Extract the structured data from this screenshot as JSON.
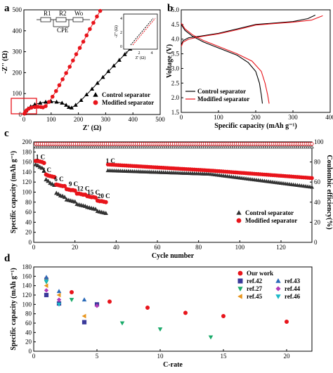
{
  "panels": {
    "a": "a",
    "b": "b",
    "c": "c",
    "d": "d"
  },
  "chart_data": [
    {
      "id": "a",
      "type": "scatter",
      "xlabel": "Z' (Ω)",
      "ylabel": "-Z'' (Ω)",
      "xlim": [
        0,
        500
      ],
      "ylim": [
        0,
        500
      ],
      "xticks": [
        0,
        100,
        200,
        300,
        400,
        500
      ],
      "yticks": [
        0,
        100,
        200,
        300,
        400,
        500
      ],
      "circuit_labels": [
        "R1",
        "R2",
        "Wo",
        "CPE"
      ],
      "inset": {
        "xlabel": "Z' (Ω)",
        "ylabel": "-Z'' (Ω)",
        "xticks": [
          0,
          2,
          4
        ],
        "yticks": [
          0,
          2,
          4
        ]
      },
      "series": [
        {
          "name": "Control separator",
          "marker": "triangle",
          "color": "#000000",
          "x": [
            2,
            8,
            15,
            25,
            40,
            60,
            80,
            100,
            120,
            140,
            155,
            165,
            175,
            190,
            210,
            230,
            250,
            270,
            290,
            310,
            330,
            350,
            370,
            390,
            410,
            430
          ],
          "y": [
            5,
            18,
            28,
            38,
            48,
            55,
            60,
            62,
            60,
            55,
            45,
            35,
            32,
            45,
            68,
            95,
            122,
            150,
            178,
            206,
            233,
            260,
            287,
            313,
            340,
            366
          ]
        },
        {
          "name": "Modified separator",
          "marker": "circle",
          "color": "#e8141b",
          "x": [
            2,
            5,
            10,
            18,
            28,
            40,
            52,
            62,
            70,
            80,
            92,
            105,
            118,
            130,
            142,
            155,
            168,
            180,
            192,
            205,
            218,
            230,
            242,
            255,
            268,
            280
          ],
          "y": [
            4,
            12,
            20,
            28,
            33,
            36,
            37,
            36,
            34,
            40,
            60,
            85,
            112,
            140,
            168,
            198,
            228,
            258,
            288,
            318,
            348,
            378,
            408,
            438,
            468,
            495
          ]
        }
      ]
    },
    {
      "id": "b",
      "type": "line",
      "xlabel": "Specific capacity (mAh g⁻¹)",
      "ylabel": "Voltage (V)",
      "xlim": [
        0,
        400
      ],
      "ylim": [
        1.5,
        5.0
      ],
      "xticks": [
        0,
        100,
        200,
        300,
        400
      ],
      "yticks": [
        1.5,
        2.0,
        2.5,
        3.0,
        3.5,
        4.0,
        4.5,
        5.0
      ],
      "series": [
        {
          "name": "Control separator",
          "color": "#000000",
          "charge": {
            "x": [
              0,
              5,
              20,
              50,
              100,
              150,
              200,
              250,
              300,
              340,
              360
            ],
            "y": [
              3.8,
              3.95,
              4.05,
              4.1,
              4.2,
              4.35,
              4.5,
              4.55,
              4.6,
              4.7,
              4.82
            ]
          },
          "discharge": {
            "x": [
              0,
              10,
              30,
              60,
              100,
              150,
              180,
              200,
              210,
              215,
              218
            ],
            "y": [
              4.5,
              4.3,
              4.1,
              3.9,
              3.7,
              3.45,
              3.2,
              2.9,
              2.5,
              2.1,
              1.8
            ]
          }
        },
        {
          "name": "Modified separator",
          "color": "#e8141b",
          "charge": {
            "x": [
              0,
              5,
              20,
              50,
              100,
              150,
              200,
              250,
              300,
              350,
              380
            ],
            "y": [
              3.75,
              3.9,
              4.0,
              4.08,
              4.18,
              4.32,
              4.48,
              4.53,
              4.58,
              4.65,
              4.8
            ]
          },
          "discharge": {
            "x": [
              0,
              10,
              30,
              60,
              100,
              150,
              190,
              215,
              225,
              232,
              236
            ],
            "y": [
              4.55,
              4.35,
              4.15,
              3.95,
              3.75,
              3.5,
              3.25,
              2.9,
              2.5,
              2.1,
              1.8
            ]
          }
        }
      ]
    },
    {
      "id": "c",
      "type": "scatter",
      "xlabel": "Cycle number",
      "ylabel": "Specific capacity (mAh g⁻¹)",
      "y2label": "Coulombic efficiency(%)",
      "xlim": [
        0,
        135
      ],
      "ylim": [
        0,
        200
      ],
      "y2lim": [
        0,
        100
      ],
      "xticks": [
        0,
        20,
        40,
        60,
        80,
        100,
        120
      ],
      "yticks": [
        0,
        20,
        40,
        60,
        80,
        100,
        120,
        140,
        160,
        180,
        200
      ],
      "y2ticks": [
        0,
        20,
        40,
        60,
        80,
        100
      ],
      "rate_labels": [
        {
          "text": "1 C",
          "x": 1,
          "y": 166
        },
        {
          "text": "3 C",
          "x": 4,
          "y": 140
        },
        {
          "text": "6 C",
          "x": 10,
          "y": 122
        },
        {
          "text": "9 C",
          "x": 17,
          "y": 112
        },
        {
          "text": "12 C",
          "x": 21,
          "y": 103
        },
        {
          "text": "15 C",
          "x": 26,
          "y": 95
        },
        {
          "text": "20 C",
          "x": 31,
          "y": 88
        },
        {
          "text": "1 C",
          "x": 35,
          "y": 158
        }
      ],
      "series": [
        {
          "name": "Control separator",
          "color": "#333333",
          "marker": "triangle",
          "capacity_rate": {
            "x": [
              1,
              2,
              3,
              4,
              5,
              6,
              7,
              8,
              9,
              10,
              11,
              12,
              13,
              14,
              15,
              16,
              17,
              18,
              19,
              20,
              21,
              22,
              23,
              24,
              25,
              26,
              27,
              28,
              29,
              30,
              31,
              32,
              33,
              34,
              35
            ],
            "y": [
              155,
              153,
              150,
              148,
              142,
              125,
              122,
              118,
              116,
              114,
              98,
              96,
              93,
              92,
              90,
              85,
              84,
              83,
              82,
              81,
              76,
              75,
              74,
              73,
              72,
              70,
              69,
              68,
              67,
              66,
              62,
              61,
              60,
              59,
              58
            ]
          },
          "capacity_long": {
            "x_start": 36,
            "x_end": 135,
            "y_start": 143,
            "y_mid": 136,
            "y_end": 110
          },
          "efficiency_y": 95
        },
        {
          "name": "Modified separator",
          "color": "#e8141b",
          "marker": "circle",
          "capacity_rate": {
            "x": [
              1,
              2,
              3,
              4,
              5,
              6,
              7,
              8,
              9,
              10,
              11,
              12,
              13,
              14,
              15,
              16,
              17,
              18,
              19,
              20,
              21,
              22,
              23,
              24,
              25,
              26,
              27,
              28,
              29,
              30,
              31,
              32,
              33,
              34,
              35
            ],
            "y": [
              162,
              162,
              161,
              160,
              158,
              135,
              133,
              132,
              131,
              130,
              115,
              114,
              113,
              112,
              112,
              106,
              105,
              104,
              104,
              103,
              97,
              97,
              96,
              95,
              95,
              92,
              91,
              90,
              90,
              89,
              83,
              82,
              82,
              81,
              80
            ]
          },
          "capacity_long": {
            "x_start": 36,
            "x_end": 135,
            "y_start": 155,
            "y_mid": 143,
            "y_end": 128
          },
          "efficiency_y": 98
        }
      ]
    },
    {
      "id": "d",
      "type": "scatter",
      "xlabel": "C-rate",
      "ylabel": "Specific capacity (mAh g⁻¹)",
      "xlim": [
        0,
        22
      ],
      "ylim": [
        0,
        180
      ],
      "xticks": [
        0,
        5,
        10,
        15,
        20
      ],
      "yticks": [
        0,
        20,
        40,
        60,
        80,
        100,
        120,
        140,
        160,
        180
      ],
      "series": [
        {
          "name": "Our work",
          "color": "#e8141b",
          "marker": "circle",
          "x": [
            1,
            3,
            6,
            9,
            12,
            15,
            20
          ],
          "y": [
            155,
            126,
            106,
            93,
            82,
            75,
            63
          ]
        },
        {
          "name": "ref.42",
          "color": "#3a3a9a",
          "marker": "square",
          "x": [
            1,
            2,
            4,
            5
          ],
          "y": [
            120,
            102,
            62,
            100
          ]
        },
        {
          "name": "ref.27",
          "color": "#1aaa6a",
          "marker": "triangle-down",
          "x": [
            1,
            3,
            7,
            10,
            14
          ],
          "y": [
            148,
            110,
            60,
            47,
            30
          ]
        },
        {
          "name": "ref.45",
          "color": "#e8961e",
          "marker": "triangle-left",
          "x": [
            1,
            2,
            4
          ],
          "y": [
            140,
            120,
            75
          ]
        },
        {
          "name": "ref.43",
          "color": "#2a6ab8",
          "marker": "triangle",
          "x": [
            1,
            2,
            4
          ],
          "y": [
            158,
            128,
            110
          ]
        },
        {
          "name": "ref.44",
          "color": "#b23ab8",
          "marker": "diamond",
          "x": [
            1,
            2,
            5
          ],
          "y": [
            130,
            110,
            97
          ]
        },
        {
          "name": "ref.46",
          "color": "#1ab8c8",
          "marker": "triangle-down",
          "x": [
            1,
            2
          ],
          "y": [
            150,
            100
          ]
        }
      ]
    }
  ]
}
